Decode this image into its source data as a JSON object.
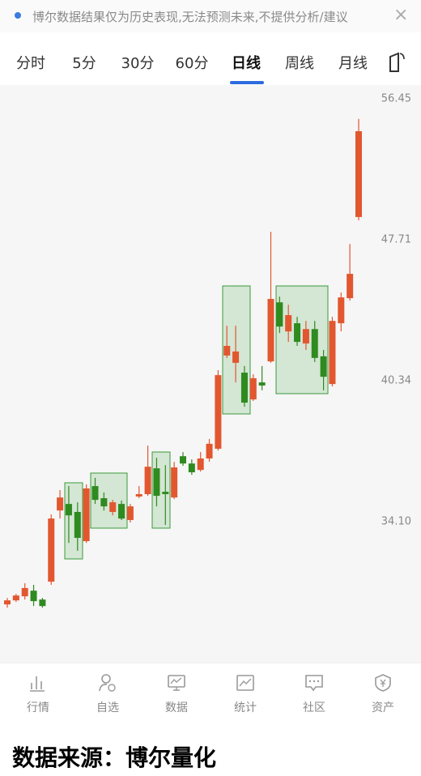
{
  "notice": {
    "text": "博尔数据结果仅为历史表现,无法预测未来,不提供分析/建议",
    "close": "×"
  },
  "tabs": [
    "分时",
    "5分",
    "30分",
    "60分",
    "日线",
    "周线",
    "月线"
  ],
  "active_tab": "日线",
  "chart_data": {
    "type": "candlestick",
    "open": [
      30.9,
      31.05,
      31.2,
      31.41,
      31.08,
      31.75,
      34.56,
      34.83,
      34.5,
      33.32,
      35.58,
      35.07,
      34.5,
      34.83,
      34.17,
      35.14,
      35.24,
      36.34,
      35.34,
      35.1,
      36.87,
      36.55,
      36.27,
      36.77,
      37.2,
      41.57,
      41.21,
      40.73,
      39.45,
      40.26,
      41.28,
      44.29,
      42.78,
      43.2,
      42.17,
      42.9,
      41.53,
      40.18,
      43.2,
      44.51,
      49.03
    ],
    "high": [
      31.14,
      31.29,
      31.69,
      31.63,
      31.14,
      34.4,
      35.41,
      35.58,
      34.9,
      35.65,
      35.93,
      35.31,
      35.0,
      34.97,
      34.83,
      35.58,
      37.34,
      36.8,
      36.48,
      36.62,
      37.05,
      36.73,
      37.05,
      37.63,
      40.85,
      43.07,
      43.07,
      41.05,
      40.65,
      41.05,
      48.17,
      44.59,
      44.16,
      43.53,
      43.32,
      43.32,
      41.85,
      43.53,
      44.81,
      47.48,
      55.11
    ],
    "low": [
      30.78,
      30.99,
      31.08,
      30.84,
      30.78,
      31.63,
      34.23,
      33.25,
      32.94,
      33.25,
      34.83,
      34.56,
      34.36,
      34.17,
      34.07,
      35.07,
      35.17,
      34.73,
      33.97,
      35.03,
      36.45,
      36.06,
      36.2,
      36.63,
      37.12,
      41.45,
      40.26,
      39.11,
      39.38,
      39.88,
      41.21,
      42.7,
      42.25,
      42.05,
      41.85,
      41.25,
      39.88,
      40.07,
      42.78,
      44.38,
      48.84
    ],
    "close": [
      31.05,
      31.23,
      31.51,
      31.02,
      30.84,
      34.23,
      35.1,
      34.36,
      33.45,
      35.48,
      35.0,
      34.73,
      34.9,
      34.23,
      34.73,
      35.24,
      36.41,
      35.17,
      35.24,
      36.38,
      36.55,
      36.17,
      36.77,
      37.42,
      40.61,
      42.05,
      41.77,
      39.3,
      40.46,
      40.11,
      44.47,
      43.03,
      43.62,
      42.25,
      42.9,
      41.45,
      40.53,
      43.32,
      44.55,
      45.82,
      54.31
    ],
    "up_color": "#e2572f",
    "down_color": "#2f8a1f",
    "ylim": [
      28.83,
      57.38
    ],
    "log_scale": true,
    "yticks": [
      56.45,
      47.71,
      40.34,
      {
        "value": 34.1,
        "label": "34.10"
      }
    ]
  },
  "nav": [
    "行情",
    "自选",
    "数据",
    "统计",
    "社区",
    "资产"
  ],
  "footer": "数据来源：博尔量化"
}
